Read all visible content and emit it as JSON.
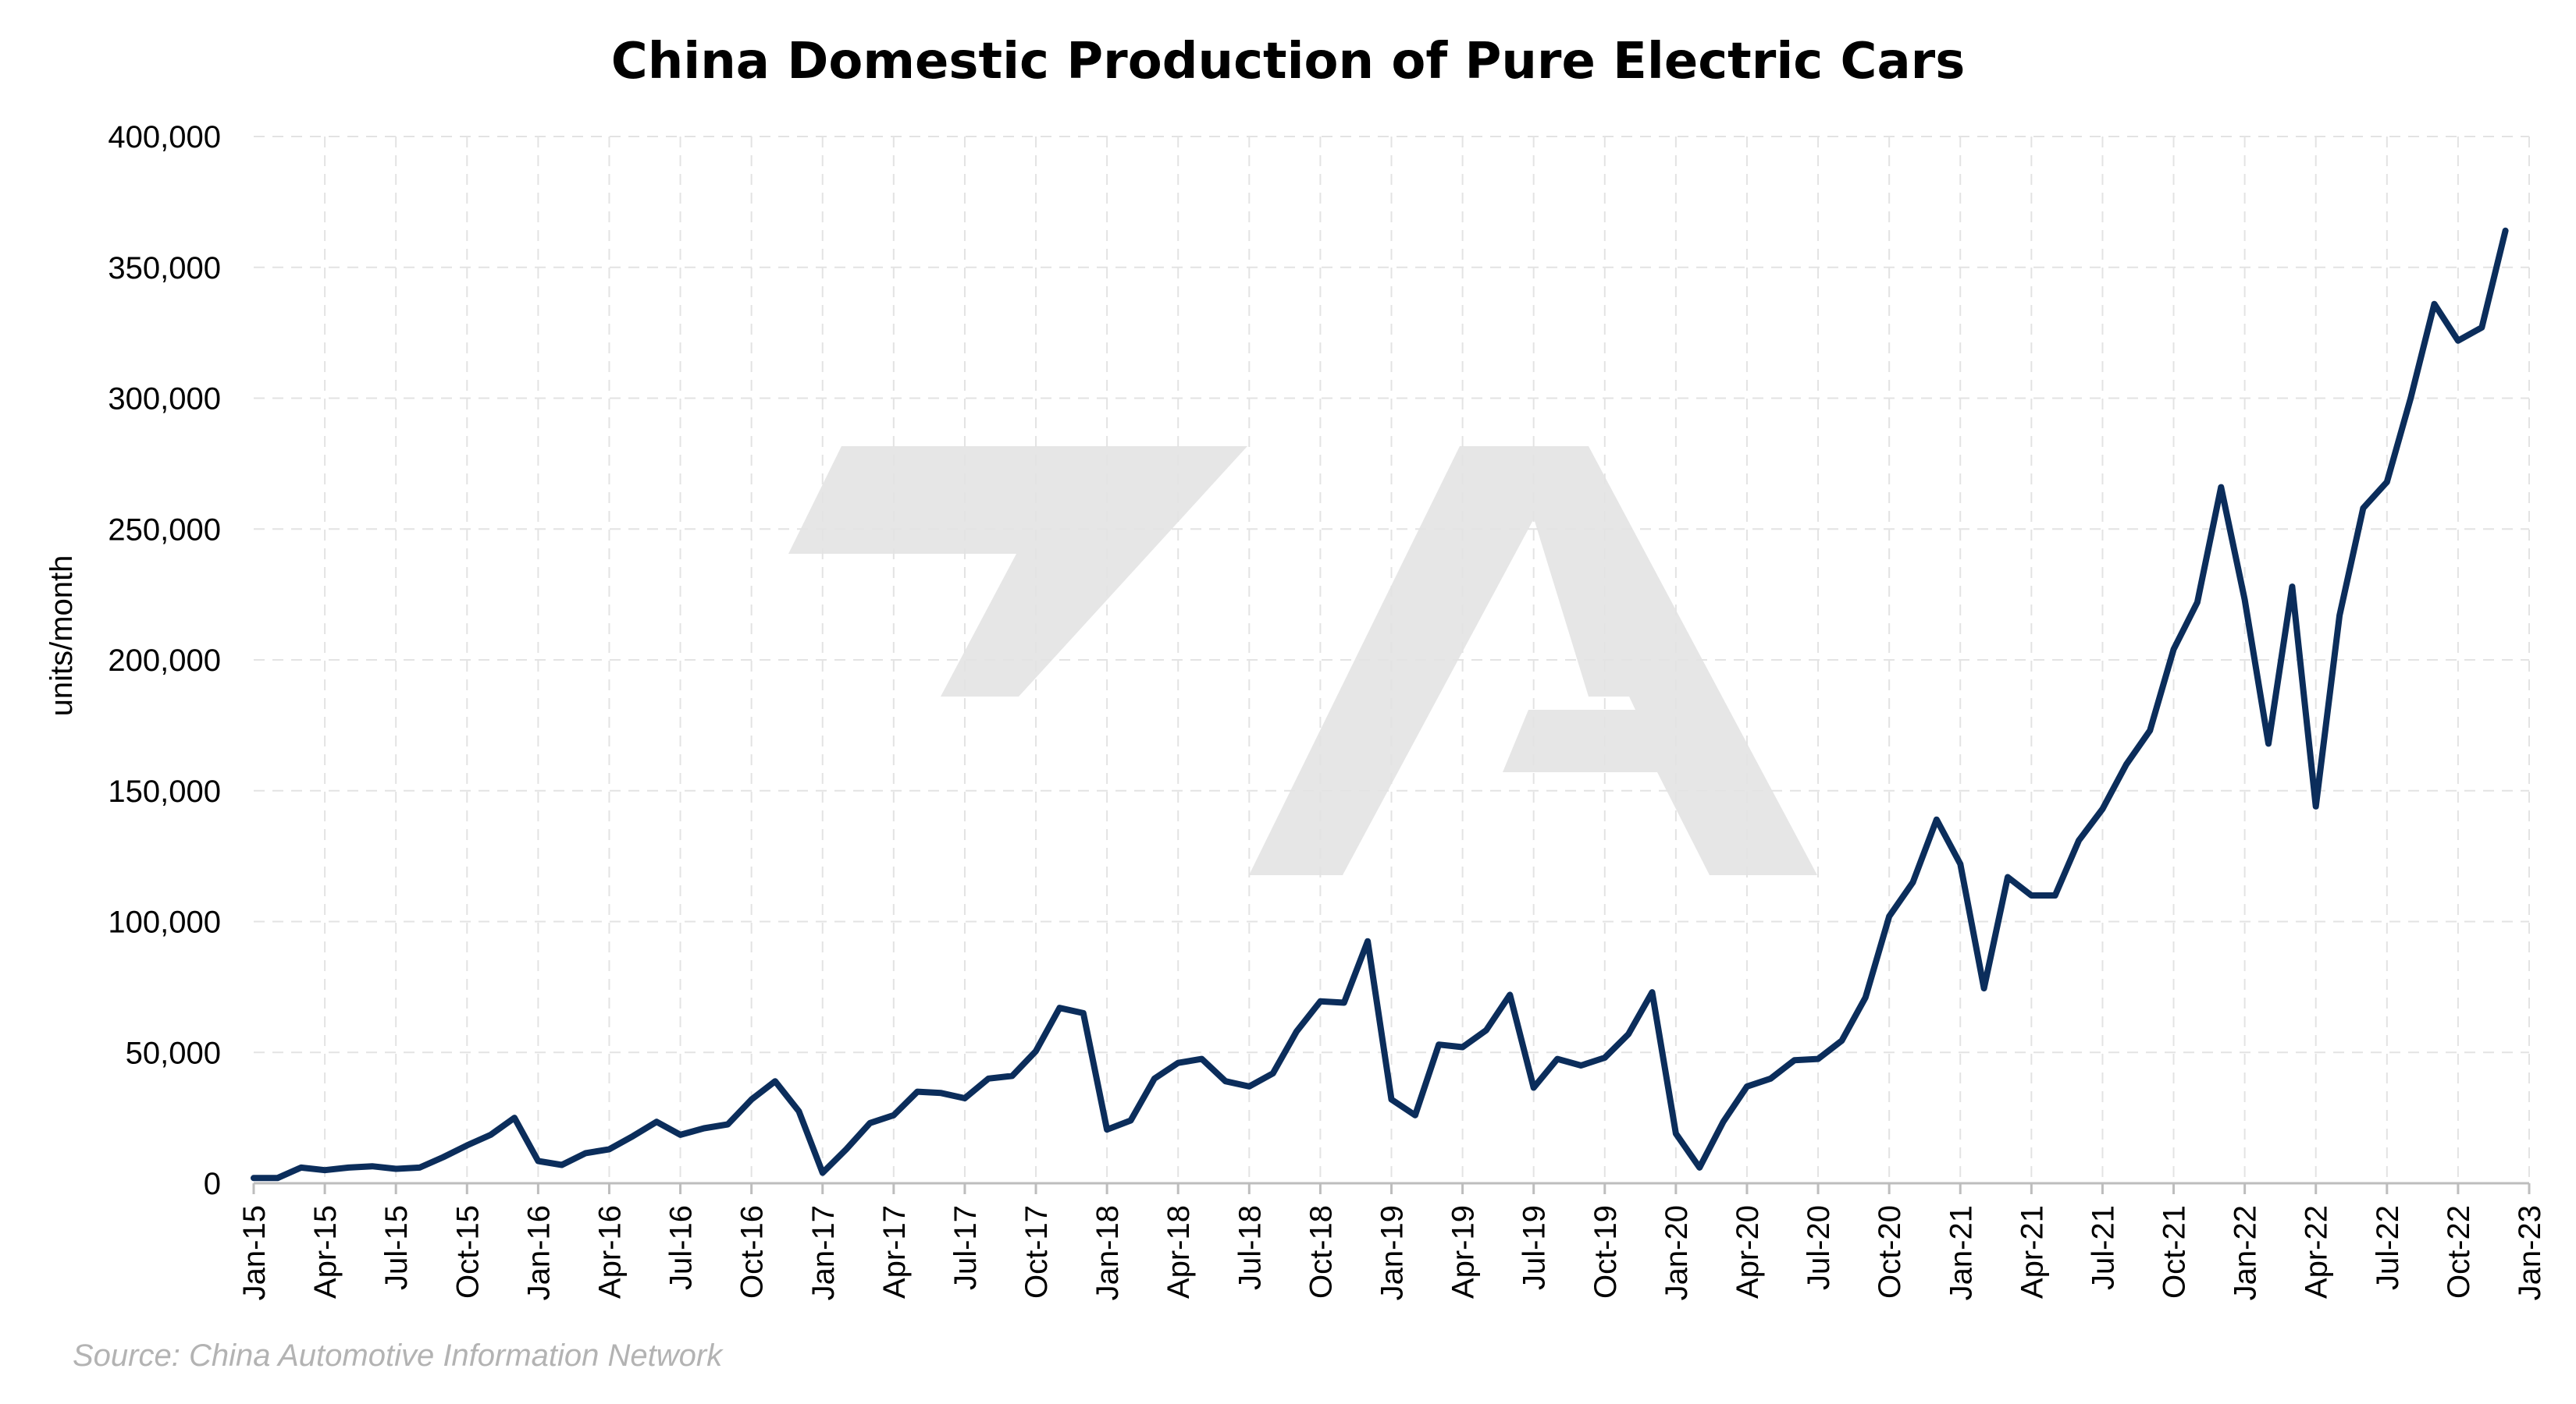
{
  "chart_data": {
    "type": "line",
    "title": "China Domestic Production of Pure Electric Cars",
    "ylabel": "units/month",
    "xlabel": "",
    "source": "Source: China Automotive Information Network",
    "ylim": [
      0,
      400000
    ],
    "yticks": [
      0,
      50000,
      100000,
      150000,
      200000,
      250000,
      300000,
      350000,
      400000
    ],
    "ytick_labels": [
      "0",
      "50,000",
      "100,000",
      "150,000",
      "200,000",
      "250,000",
      "300,000",
      "350,000",
      "400,000"
    ],
    "xlim": [
      "2015-01",
      "2023-01"
    ],
    "xticks": [
      "2015-01",
      "2015-04",
      "2015-07",
      "2015-10",
      "2016-01",
      "2016-04",
      "2016-07",
      "2016-10",
      "2017-01",
      "2017-04",
      "2017-07",
      "2017-10",
      "2018-01",
      "2018-04",
      "2018-07",
      "2018-10",
      "2019-01",
      "2019-04",
      "2019-07",
      "2019-10",
      "2020-01",
      "2020-04",
      "2020-07",
      "2020-10",
      "2021-01",
      "2021-04",
      "2021-07",
      "2021-10",
      "2022-01",
      "2022-04",
      "2022-07",
      "2022-10",
      "2023-01"
    ],
    "xtick_labels": [
      "Jan-15",
      "Apr-15",
      "Jul-15",
      "Oct-15",
      "Jan-16",
      "Apr-16",
      "Jul-16",
      "Oct-16",
      "Jan-17",
      "Apr-17",
      "Jul-17",
      "Oct-17",
      "Jan-18",
      "Apr-18",
      "Jul-18",
      "Oct-18",
      "Jan-19",
      "Apr-19",
      "Jul-19",
      "Oct-19",
      "Jan-20",
      "Apr-20",
      "Jul-20",
      "Oct-20",
      "Jan-21",
      "Apr-21",
      "Jul-21",
      "Oct-21",
      "Jan-22",
      "Apr-22",
      "Jul-22",
      "Oct-22",
      "Jan-23"
    ],
    "grid": true,
    "series_color": "#0b2d5b",
    "series": [
      {
        "x": [
          "2015-01",
          "2015-02",
          "2015-03",
          "2015-04",
          "2015-05",
          "2015-06",
          "2015-07",
          "2015-08",
          "2015-09",
          "2015-10",
          "2015-11",
          "2015-12",
          "2016-01",
          "2016-02",
          "2016-03",
          "2016-04",
          "2016-05",
          "2016-06",
          "2016-07",
          "2016-08",
          "2016-09",
          "2016-10",
          "2016-11",
          "2016-12",
          "2017-01",
          "2017-02",
          "2017-03",
          "2017-04",
          "2017-05",
          "2017-06",
          "2017-07",
          "2017-08",
          "2017-09",
          "2017-10",
          "2017-11",
          "2017-12",
          "2018-01",
          "2018-02",
          "2018-03",
          "2018-04",
          "2018-05",
          "2018-06",
          "2018-07",
          "2018-08",
          "2018-09",
          "2018-10",
          "2018-11",
          "2018-12",
          "2019-01",
          "2019-02",
          "2019-03",
          "2019-04",
          "2019-05",
          "2019-06",
          "2019-07",
          "2019-08",
          "2019-09",
          "2019-10",
          "2019-11",
          "2019-12",
          "2020-01",
          "2020-02",
          "2020-03",
          "2020-04",
          "2020-05",
          "2020-06",
          "2020-07",
          "2020-08",
          "2020-09",
          "2020-10",
          "2020-11",
          "2020-12",
          "2021-01",
          "2021-02",
          "2021-03",
          "2021-04",
          "2021-05",
          "2021-06",
          "2021-07",
          "2021-08",
          "2021-09",
          "2021-10",
          "2021-11",
          "2021-12",
          "2022-01",
          "2022-02",
          "2022-03",
          "2022-04",
          "2022-05",
          "2022-06",
          "2022-07",
          "2022-08",
          "2022-09",
          "2022-10",
          "2022-11",
          "2022-12"
        ],
        "values": [
          2000,
          2000,
          6000,
          5000,
          6000,
          6500,
          5500,
          6000,
          10000,
          14500,
          18500,
          25000,
          8500,
          7000,
          11500,
          13000,
          18000,
          23500,
          18500,
          21000,
          22500,
          32000,
          39000,
          27500,
          4000,
          13000,
          23000,
          26000,
          35000,
          34500,
          32500,
          40000,
          41000,
          50500,
          67000,
          65000,
          20500,
          24000,
          40000,
          46000,
          47500,
          39000,
          37000,
          42000,
          58000,
          69500,
          69000,
          92500,
          32000,
          26000,
          53000,
          52000,
          58500,
          72000,
          36500,
          47500,
          45000,
          48000,
          57000,
          73000,
          19000,
          6000,
          23500,
          37000,
          40000,
          47000,
          47500,
          54500,
          71000,
          102000,
          115000,
          139000,
          122000,
          74500,
          117000,
          110000,
          110000,
          131000,
          143000,
          160000,
          173000,
          204000,
          222000,
          266000,
          223000,
          168000,
          228000,
          144000,
          217000,
          258000,
          268000,
          300000,
          336000,
          322000,
          327000,
          364000
        ]
      }
    ]
  },
  "watermark_icon": "ta-logo-watermark"
}
